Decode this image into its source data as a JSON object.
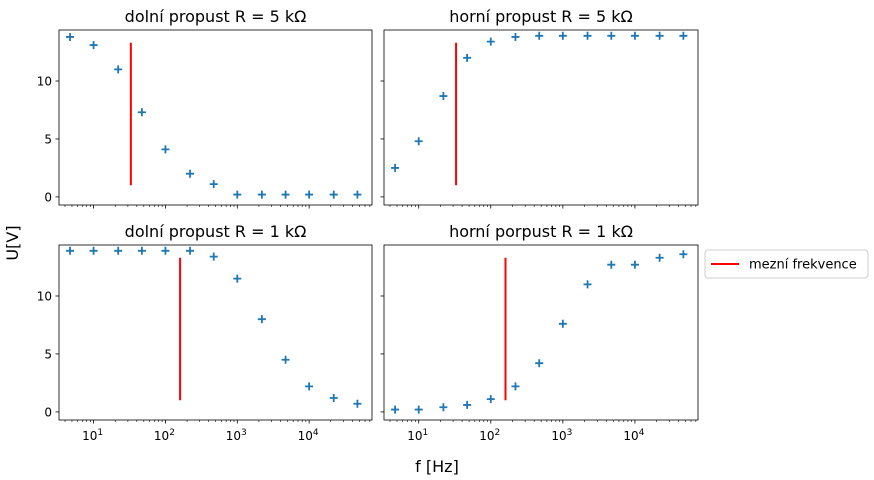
{
  "figure": {
    "ylabel": "U[V]",
    "xlabel": "f [Hz]",
    "legend_label": "mezní frekvence",
    "legend_placement": "right, outside next to bottom-right panel"
  },
  "colors": {
    "marker": "#1f77b4",
    "cutoff": "#ff0000",
    "axes": "#000000",
    "legend_border": "#cccccc"
  },
  "chart_data": [
    {
      "type": "scatter",
      "title": "dolní propust R = 5 kΩ",
      "xscale": "log",
      "xlim": [
        3.3,
        75000
      ],
      "ylim": [
        -0.7,
        14.4
      ],
      "yticks": [
        0,
        5,
        10
      ],
      "xticks": [
        10,
        100,
        1000,
        10000
      ],
      "show_xtick_labels": false,
      "show_ytick_labels": true,
      "marker": "+",
      "x": [
        4.7,
        10,
        22,
        47,
        100,
        220,
        470,
        1000,
        2200,
        4700,
        10000,
        22000,
        47000
      ],
      "y": [
        13.8,
        13.1,
        11.0,
        7.3,
        4.1,
        2.0,
        1.1,
        0.2,
        0.2,
        0.2,
        0.2,
        0.2,
        0.2
      ],
      "cutoff": {
        "f": 33,
        "y_from": 1.0,
        "y_to": 13.3
      }
    },
    {
      "type": "scatter",
      "title": "horní propust R = 5 kΩ",
      "xscale": "log",
      "xlim": [
        3.3,
        75000
      ],
      "ylim": [
        -0.7,
        14.4
      ],
      "yticks": [
        0,
        5,
        10
      ],
      "xticks": [
        10,
        100,
        1000,
        10000
      ],
      "show_xtick_labels": false,
      "show_ytick_labels": false,
      "marker": "+",
      "x": [
        4.7,
        10,
        22,
        47,
        100,
        220,
        470,
        1000,
        2200,
        4700,
        10000,
        22000,
        47000
      ],
      "y": [
        2.5,
        4.8,
        8.7,
        12.0,
        13.4,
        13.8,
        13.9,
        13.9,
        13.9,
        13.9,
        13.9,
        13.9,
        13.9
      ],
      "cutoff": {
        "f": 33,
        "y_from": 1.0,
        "y_to": 13.3
      }
    },
    {
      "type": "scatter",
      "title": "dolní propust R = 1 kΩ",
      "xscale": "log",
      "xlim": [
        3.3,
        75000
      ],
      "ylim": [
        -0.7,
        14.4
      ],
      "yticks": [
        0,
        5,
        10
      ],
      "xticks": [
        10,
        100,
        1000,
        10000
      ],
      "xticklabels": [
        "10",
        "10",
        "10",
        "10"
      ],
      "xtickexps": [
        "1",
        "2",
        "3",
        "4"
      ],
      "show_xtick_labels": true,
      "show_ytick_labels": true,
      "marker": "+",
      "x": [
        4.7,
        10,
        22,
        47,
        100,
        220,
        470,
        1000,
        2200,
        4700,
        10000,
        22000,
        47000
      ],
      "y": [
        13.9,
        13.9,
        13.9,
        13.9,
        13.9,
        13.9,
        13.4,
        11.5,
        8.0,
        4.5,
        2.2,
        1.2,
        0.7
      ],
      "cutoff": {
        "f": 160,
        "y_from": 1.0,
        "y_to": 13.3
      }
    },
    {
      "type": "scatter",
      "title": "horní porpust R = 1 kΩ",
      "xscale": "log",
      "xlim": [
        3.3,
        75000
      ],
      "ylim": [
        -0.7,
        14.4
      ],
      "yticks": [
        0,
        5,
        10
      ],
      "xticks": [
        10,
        100,
        1000,
        10000
      ],
      "xticklabels": [
        "10",
        "10",
        "10",
        "10"
      ],
      "xtickexps": [
        "1",
        "2",
        "3",
        "4"
      ],
      "show_xtick_labels": true,
      "show_ytick_labels": false,
      "marker": "+",
      "x": [
        4.7,
        10,
        22,
        47,
        100,
        220,
        470,
        1000,
        2200,
        4700,
        10000,
        22000,
        47000
      ],
      "y": [
        0.2,
        0.2,
        0.4,
        0.6,
        1.1,
        2.2,
        4.2,
        7.6,
        11.0,
        12.7,
        12.7,
        13.3,
        13.6
      ],
      "cutoff": {
        "f": 160,
        "y_from": 1.0,
        "y_to": 13.3
      }
    }
  ]
}
